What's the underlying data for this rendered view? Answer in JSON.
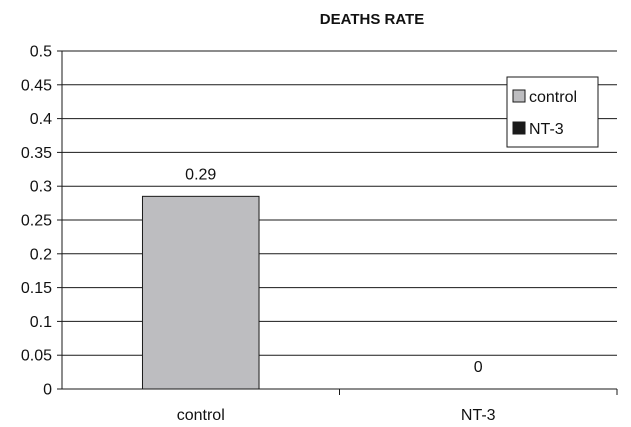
{
  "chart_data": {
    "type": "bar",
    "title": "DEATHS RATE",
    "xlabel": "",
    "ylabel": "",
    "categories": [
      "control",
      "NT-3"
    ],
    "values": [
      0.285,
      0
    ],
    "data_labels": [
      "0.29",
      "0"
    ],
    "series_colors": [
      "#bdbdc0",
      "#1a1a1a"
    ],
    "ylim": [
      0,
      0.5
    ],
    "yticks": [
      "0",
      "0.05",
      "0.1",
      "0.15",
      "0.2",
      "0.25",
      "0.3",
      "0.35",
      "0.4",
      "0.45",
      "0.5"
    ],
    "grid": true,
    "legend": {
      "placement": "top-right",
      "entries": [
        {
          "label": "control",
          "color": "#bdbdc0"
        },
        {
          "label": "NT-3",
          "color": "#1a1a1a"
        }
      ]
    }
  }
}
